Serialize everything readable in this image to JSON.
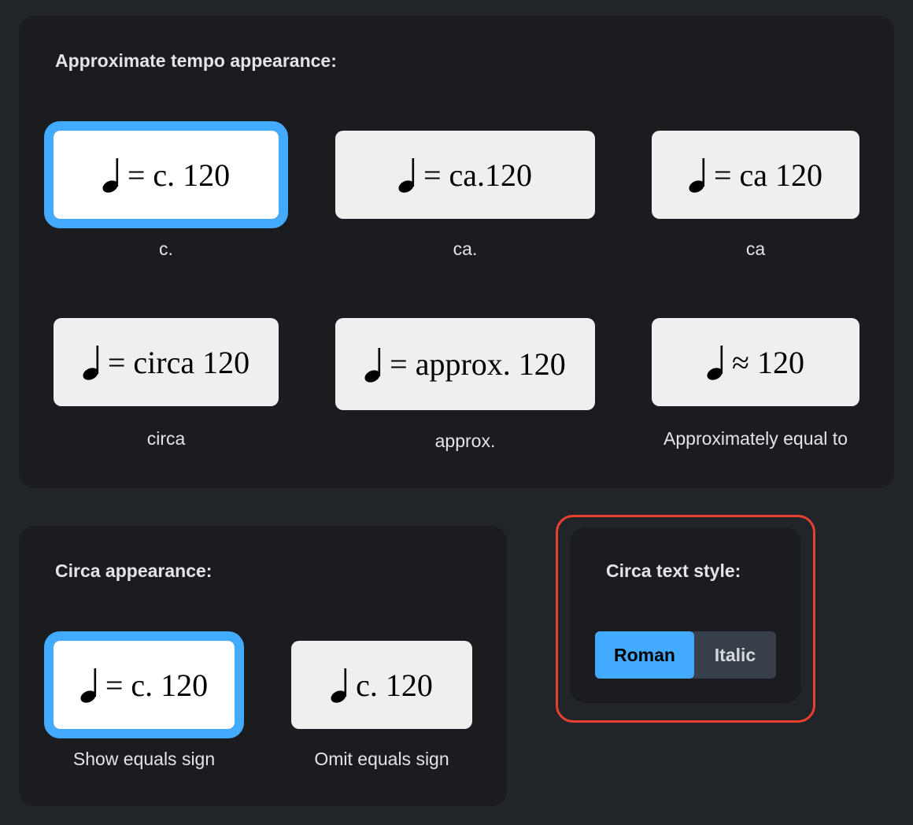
{
  "approximate_tempo": {
    "title": "Approximate tempo appearance:",
    "options": [
      {
        "text": "= c. 120",
        "label": "c.",
        "selected": true
      },
      {
        "text": "= ca.120",
        "label": "ca.",
        "selected": false
      },
      {
        "text": "= ca 120",
        "label": "ca",
        "selected": false
      },
      {
        "text": "= circa 120",
        "label": "circa",
        "selected": false
      },
      {
        "text": "= approx. 120",
        "label": "approx.",
        "selected": false
      },
      {
        "text": "≈ 120",
        "label": "Approximately equal to",
        "selected": false
      }
    ]
  },
  "circa_appearance": {
    "title": "Circa appearance:",
    "options": [
      {
        "text": "= c. 120",
        "label": "Show equals sign",
        "selected": true
      },
      {
        "text": "c. 120",
        "label": "Omit equals sign",
        "selected": false
      }
    ]
  },
  "circa_text_style": {
    "title": "Circa text style:",
    "options": [
      "Roman",
      "Italic"
    ],
    "selected": "Roman"
  },
  "colors": {
    "accent": "#42abff",
    "highlight": "#e8412f",
    "panel": "#1a1c20",
    "background": "#212529"
  }
}
